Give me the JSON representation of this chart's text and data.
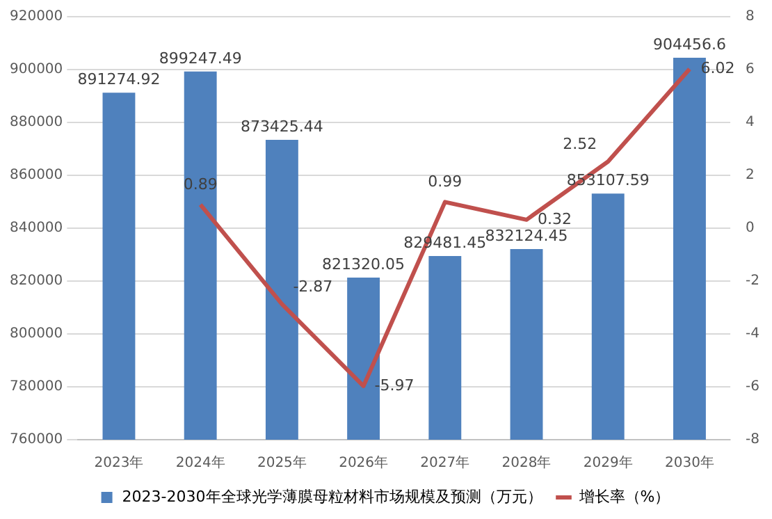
{
  "chart_data": {
    "type": "bar",
    "categories": [
      "2023年",
      "2024年",
      "2025年",
      "2026年",
      "2027年",
      "2028年",
      "2029年",
      "2030年"
    ],
    "series": [
      {
        "name": "2023-2030年全球光学薄膜母粒材料市场规模及预测（万元）",
        "color": "#4f81bd",
        "values": [
          891274.92,
          899247.49,
          873425.44,
          821320.05,
          829481.45,
          832124.45,
          853107.59,
          904456.6
        ]
      },
      {
        "name": "增长率（%）",
        "type": "line",
        "axis": "y2",
        "color": "#c0504d",
        "values": [
          null,
          0.89,
          -2.87,
          -5.97,
          0.99,
          0.32,
          2.52,
          6.02
        ]
      }
    ],
    "ylim": [
      760000,
      920000
    ],
    "yticks": [
      760000,
      780000,
      800000,
      820000,
      840000,
      860000,
      880000,
      900000,
      920000
    ],
    "y2lim": [
      -8,
      8
    ],
    "y2ticks": [
      -8,
      -6,
      -4,
      -2,
      0,
      2,
      4,
      6,
      8
    ],
    "grid": "y",
    "legend": "bottom",
    "marker": "none",
    "data_labels": true
  }
}
